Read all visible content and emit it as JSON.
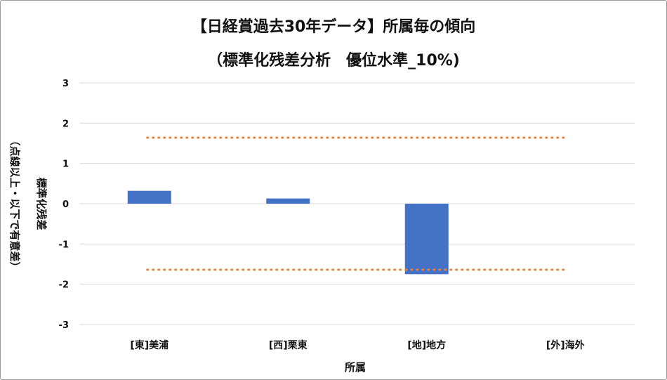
{
  "chart_data": {
    "type": "bar",
    "title": "【日経賞過去30年データ】所属毎の傾向",
    "subtitle": "（標準化残差分析　優位水準_10%)",
    "xlabel": "所属",
    "ylabel": "標準化残差",
    "ylabel_note": "（点線以上・以下で有意差）",
    "categories": [
      "[東]美浦",
      "[西]栗東",
      "[地]地方",
      "[外]海外"
    ],
    "values": [
      0.32,
      0.13,
      -1.75,
      0
    ],
    "ylim": [
      -3,
      3
    ],
    "yticks": [
      "3",
      "2",
      "1",
      "0",
      "-1",
      "-2",
      "-3"
    ],
    "threshold_lines": [
      1.64,
      -1.64
    ],
    "grid": true,
    "legend": "none",
    "colors": {
      "bar": "#4472C4",
      "threshold": "#ED7D31",
      "grid": "#D9D9D9"
    }
  }
}
